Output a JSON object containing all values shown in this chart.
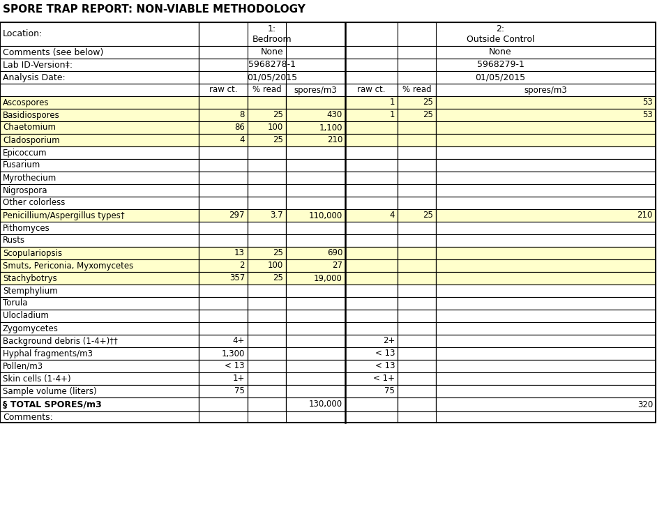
{
  "title": "SPORE TRAP REPORT: NON-VIABLE METHODOLOGY",
  "header_rows": [
    {
      "label": "Location:",
      "col1": "1:\nBedroom",
      "col2": "2:\nOutside Control"
    },
    {
      "label": "Comments (see below)",
      "col1": "None",
      "col2": "None"
    },
    {
      "label": "Lab ID-Version‡:",
      "col1": "5968278-1",
      "col2": "5968279-1"
    },
    {
      "label": "Analysis Date:",
      "col1": "01/05/2015",
      "col2": "01/05/2015"
    }
  ],
  "subheader": [
    "",
    "raw ct.",
    "% read",
    "spores/m3",
    "raw ct.",
    "% read",
    "spores/m3"
  ],
  "data_rows": [
    {
      "label": "Ascospores",
      "c1_raw": "",
      "c1_pct": "",
      "c1_spm": "",
      "c2_raw": "1",
      "c2_pct": "25",
      "c2_spm": "53",
      "highlight": true
    },
    {
      "label": "Basidiospores",
      "c1_raw": "8",
      "c1_pct": "25",
      "c1_spm": "430",
      "c2_raw": "1",
      "c2_pct": "25",
      "c2_spm": "53",
      "highlight": true
    },
    {
      "label": "Chaetomium",
      "c1_raw": "86",
      "c1_pct": "100",
      "c1_spm": "1,100",
      "c2_raw": "",
      "c2_pct": "",
      "c2_spm": "",
      "highlight": true
    },
    {
      "label": "Cladosporium",
      "c1_raw": "4",
      "c1_pct": "25",
      "c1_spm": "210",
      "c2_raw": "",
      "c2_pct": "",
      "c2_spm": "",
      "highlight": true
    },
    {
      "label": "Epicoccum",
      "c1_raw": "",
      "c1_pct": "",
      "c1_spm": "",
      "c2_raw": "",
      "c2_pct": "",
      "c2_spm": "",
      "highlight": false
    },
    {
      "label": "Fusarium",
      "c1_raw": "",
      "c1_pct": "",
      "c1_spm": "",
      "c2_raw": "",
      "c2_pct": "",
      "c2_spm": "",
      "highlight": false
    },
    {
      "label": "Myrothecium",
      "c1_raw": "",
      "c1_pct": "",
      "c1_spm": "",
      "c2_raw": "",
      "c2_pct": "",
      "c2_spm": "",
      "highlight": false
    },
    {
      "label": "Nigrospora",
      "c1_raw": "",
      "c1_pct": "",
      "c1_spm": "",
      "c2_raw": "",
      "c2_pct": "",
      "c2_spm": "",
      "highlight": false
    },
    {
      "label": "Other colorless",
      "c1_raw": "",
      "c1_pct": "",
      "c1_spm": "",
      "c2_raw": "",
      "c2_pct": "",
      "c2_spm": "",
      "highlight": false
    },
    {
      "label": "Penicillium/Aspergillus types†",
      "c1_raw": "297",
      "c1_pct": "3.7",
      "c1_spm": "110,000",
      "c2_raw": "4",
      "c2_pct": "25",
      "c2_spm": "210",
      "highlight": true
    },
    {
      "label": "Pithomyces",
      "c1_raw": "",
      "c1_pct": "",
      "c1_spm": "",
      "c2_raw": "",
      "c2_pct": "",
      "c2_spm": "",
      "highlight": false
    },
    {
      "label": "Rusts",
      "c1_raw": "",
      "c1_pct": "",
      "c1_spm": "",
      "c2_raw": "",
      "c2_pct": "",
      "c2_spm": "",
      "highlight": false
    },
    {
      "label": "Scopulariopsis",
      "c1_raw": "13",
      "c1_pct": "25",
      "c1_spm": "690",
      "c2_raw": "",
      "c2_pct": "",
      "c2_spm": "",
      "highlight": true
    },
    {
      "label": "Smuts, Periconia, Myxomycetes",
      "c1_raw": "2",
      "c1_pct": "100",
      "c1_spm": "27",
      "c2_raw": "",
      "c2_pct": "",
      "c2_spm": "",
      "highlight": true
    },
    {
      "label": "Stachybotrys",
      "c1_raw": "357",
      "c1_pct": "25",
      "c1_spm": "19,000",
      "c2_raw": "",
      "c2_pct": "",
      "c2_spm": "",
      "highlight": true
    },
    {
      "label": "Stemphylium",
      "c1_raw": "",
      "c1_pct": "",
      "c1_spm": "",
      "c2_raw": "",
      "c2_pct": "",
      "c2_spm": "",
      "highlight": false
    },
    {
      "label": "Torula",
      "c1_raw": "",
      "c1_pct": "",
      "c1_spm": "",
      "c2_raw": "",
      "c2_pct": "",
      "c2_spm": "",
      "highlight": false
    },
    {
      "label": "Ulocladium",
      "c1_raw": "",
      "c1_pct": "",
      "c1_spm": "",
      "c2_raw": "",
      "c2_pct": "",
      "c2_spm": "",
      "highlight": false
    },
    {
      "label": "Zygomycetes",
      "c1_raw": "",
      "c1_pct": "",
      "c1_spm": "",
      "c2_raw": "",
      "c2_pct": "",
      "c2_spm": "",
      "highlight": false
    },
    {
      "label": "Background debris (1-4+)††",
      "c1_raw": "4+",
      "c1_pct": "",
      "c1_spm": "",
      "c2_raw": "2+",
      "c2_pct": "",
      "c2_spm": "",
      "highlight": false
    },
    {
      "label": "Hyphal fragments/m3",
      "c1_raw": "1,300",
      "c1_pct": "",
      "c1_spm": "",
      "c2_raw": "< 13",
      "c2_pct": "",
      "c2_spm": "",
      "highlight": false
    },
    {
      "label": "Pollen/m3",
      "c1_raw": "< 13",
      "c1_pct": "",
      "c1_spm": "",
      "c2_raw": "< 13",
      "c2_pct": "",
      "c2_spm": "",
      "highlight": false
    },
    {
      "label": "Skin cells (1-4+)",
      "c1_raw": "1+",
      "c1_pct": "",
      "c1_spm": "",
      "c2_raw": "< 1+",
      "c2_pct": "",
      "c2_spm": "",
      "highlight": false
    },
    {
      "label": "Sample volume (liters)",
      "c1_raw": "75",
      "c1_pct": "",
      "c1_spm": "",
      "c2_raw": "75",
      "c2_pct": "",
      "c2_spm": "",
      "highlight": false
    }
  ],
  "total_row": {
    "label": "§ TOTAL SPORES/m3",
    "c1_spm": "130,000",
    "c2_spm": "320"
  },
  "footer": "Comments:",
  "yellow": "#FFFFCC",
  "white": "#FFFFFF"
}
